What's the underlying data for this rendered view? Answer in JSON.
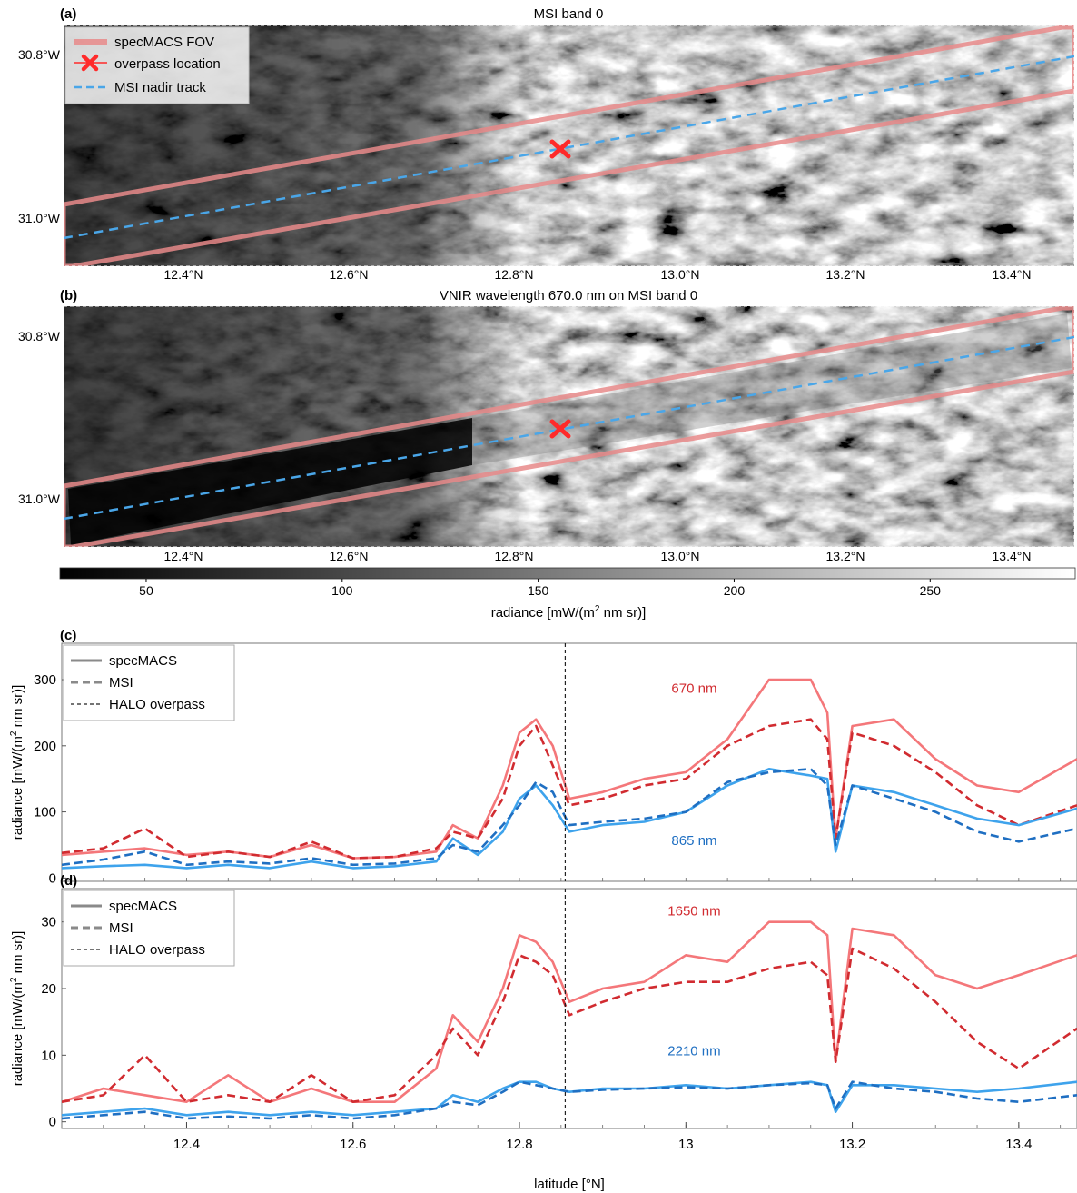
{
  "panels": {
    "a": {
      "letter": "(a)",
      "title": "MSI band 0"
    },
    "b": {
      "letter": "(b)",
      "title": "VNIR wavelength 670.0 nm on MSI band 0"
    },
    "c": {
      "letter": "(c)"
    },
    "d": {
      "letter": "(d)"
    }
  },
  "map": {
    "x_ticks": [
      "12.4°N",
      "12.6°N",
      "12.8°N",
      "13.0°N",
      "13.2°N",
      "13.4°N"
    ],
    "y_ticks": [
      "30.8°W",
      "31.0°W"
    ],
    "legend": [
      "specMACS FOV",
      "overpass location",
      "MSI nadir track"
    ],
    "colors": {
      "fov": "#e88a8a",
      "overpass": "#ff2a2a",
      "track": "#4aa6e8"
    }
  },
  "colorbar": {
    "ticks": [
      "50",
      "100",
      "150",
      "200",
      "250"
    ],
    "tick_values": [
      50,
      100,
      150,
      200,
      250
    ],
    "range": [
      28,
      287
    ],
    "label_pre": "radiance [mW/(m",
    "label_sup": "2",
    "label_post": " nm sr)]"
  },
  "legend_lines": [
    "specMACS",
    "MSI",
    "HALO overpass"
  ],
  "y_label_pre": "radiance [mW/(m",
  "y_label_sup": "2",
  "y_label_post": " nm sr)]",
  "colors": {
    "red_light": "#f4777a",
    "red_dark": "#d12b30",
    "blue_light": "#3ea3ec",
    "blue_dark": "#1f6fc2",
    "gray": "#8a8a8a"
  },
  "chart_data": [
    {
      "type": "line",
      "panel": "c",
      "xlim": [
        12.25,
        13.47
      ],
      "ylim": [
        -5,
        355
      ],
      "overpass_lat": 12.855,
      "y_ticks": [
        0,
        100,
        200,
        300
      ],
      "annotations": [
        {
          "text": "670 nm",
          "x": 13.01,
          "y": 280
        },
        {
          "text": "865 nm",
          "x": 13.01,
          "y": 50
        }
      ],
      "x": [
        12.25,
        12.3,
        12.35,
        12.4,
        12.45,
        12.5,
        12.55,
        12.6,
        12.65,
        12.7,
        12.72,
        12.75,
        12.78,
        12.8,
        12.82,
        12.84,
        12.86,
        12.9,
        12.95,
        13.0,
        13.05,
        13.1,
        13.15,
        13.17,
        13.18,
        13.2,
        13.25,
        13.3,
        13.35,
        13.4,
        13.47
      ],
      "series": [
        {
          "name": "670 nm specMACS",
          "style": "solid",
          "shade": "light",
          "hue": "red",
          "values": [
            35,
            40,
            45,
            35,
            40,
            32,
            50,
            30,
            32,
            40,
            80,
            60,
            140,
            220,
            240,
            200,
            120,
            130,
            150,
            160,
            210,
            300,
            300,
            250,
            60,
            230,
            240,
            180,
            140,
            130,
            180
          ]
        },
        {
          "name": "670 nm MSI",
          "style": "dashed",
          "shade": "dark",
          "hue": "red",
          "values": [
            38,
            45,
            75,
            32,
            40,
            32,
            55,
            30,
            32,
            45,
            70,
            60,
            120,
            200,
            230,
            170,
            110,
            120,
            140,
            150,
            200,
            230,
            240,
            210,
            60,
            220,
            200,
            160,
            110,
            80,
            110
          ]
        },
        {
          "name": "865 nm specMACS",
          "style": "solid",
          "shade": "light",
          "hue": "blue",
          "values": [
            15,
            18,
            20,
            15,
            20,
            15,
            25,
            15,
            18,
            25,
            60,
            35,
            70,
            120,
            140,
            110,
            70,
            80,
            85,
            100,
            140,
            165,
            155,
            150,
            40,
            140,
            130,
            110,
            90,
            80,
            105
          ]
        },
        {
          "name": "865 nm MSI",
          "style": "dashed",
          "shade": "dark",
          "hue": "blue",
          "values": [
            20,
            28,
            40,
            20,
            25,
            22,
            30,
            20,
            22,
            30,
            50,
            40,
            80,
            110,
            145,
            130,
            80,
            85,
            90,
            100,
            145,
            160,
            165,
            140,
            50,
            140,
            120,
            100,
            70,
            55,
            75
          ]
        }
      ]
    },
    {
      "type": "line",
      "panel": "d",
      "xlim": [
        12.25,
        13.47
      ],
      "ylim": [
        -1,
        35
      ],
      "overpass_lat": 12.855,
      "y_ticks": [
        0,
        10,
        20,
        30
      ],
      "x_ticks": [
        12.4,
        12.6,
        12.8,
        13.0,
        13.2,
        13.4
      ],
      "x_tick_labels": [
        "12.4",
        "12.6",
        "12.8",
        "13",
        "13.2",
        "13.4"
      ],
      "xlabel": "latitude [°N]",
      "annotations": [
        {
          "text": "1650 nm",
          "x": 13.01,
          "y": 31
        },
        {
          "text": "2210 nm",
          "x": 13.01,
          "y": 10
        }
      ],
      "x": [
        12.25,
        12.3,
        12.35,
        12.4,
        12.45,
        12.5,
        12.55,
        12.6,
        12.65,
        12.7,
        12.72,
        12.75,
        12.78,
        12.8,
        12.82,
        12.84,
        12.86,
        12.9,
        12.95,
        13.0,
        13.05,
        13.1,
        13.15,
        13.17,
        13.18,
        13.2,
        13.25,
        13.3,
        13.35,
        13.4,
        13.47
      ],
      "series": [
        {
          "name": "1650 nm specMACS",
          "style": "solid",
          "shade": "light",
          "hue": "red",
          "values": [
            3,
            5,
            4,
            3,
            7,
            3,
            5,
            3,
            3,
            8,
            16,
            12,
            20,
            28,
            27,
            24,
            18,
            20,
            21,
            25,
            24,
            30,
            30,
            28,
            9,
            29,
            28,
            22,
            20,
            22,
            25
          ]
        },
        {
          "name": "1650 nm MSI",
          "style": "dashed",
          "shade": "dark",
          "hue": "red",
          "values": [
            3,
            4,
            10,
            3,
            4,
            3,
            7,
            3,
            4,
            10,
            14,
            10,
            18,
            25,
            24,
            22,
            16,
            18,
            20,
            21,
            21,
            23,
            24,
            22,
            9,
            26,
            23,
            18,
            12,
            8,
            14
          ]
        },
        {
          "name": "2210 nm specMACS",
          "style": "solid",
          "shade": "light",
          "hue": "blue",
          "values": [
            1,
            1.5,
            2,
            1,
            1.5,
            1,
            1.5,
            1,
            1.5,
            2,
            4,
            3,
            5,
            6,
            6,
            5,
            4.5,
            5,
            5,
            5.5,
            5,
            5.5,
            6,
            5.5,
            1.5,
            5.5,
            5.5,
            5,
            4.5,
            5,
            6
          ]
        },
        {
          "name": "2210 nm MSI",
          "style": "dashed",
          "shade": "dark",
          "hue": "blue",
          "values": [
            0.5,
            1,
            1.5,
            0.5,
            0.8,
            0.5,
            1,
            0.5,
            1,
            2,
            3,
            2.5,
            4.5,
            6,
            5.5,
            5,
            4.5,
            4.8,
            5,
            5.2,
            5,
            5.5,
            5.8,
            5.5,
            2,
            6,
            5,
            4.5,
            3.5,
            3,
            4
          ]
        }
      ]
    }
  ]
}
